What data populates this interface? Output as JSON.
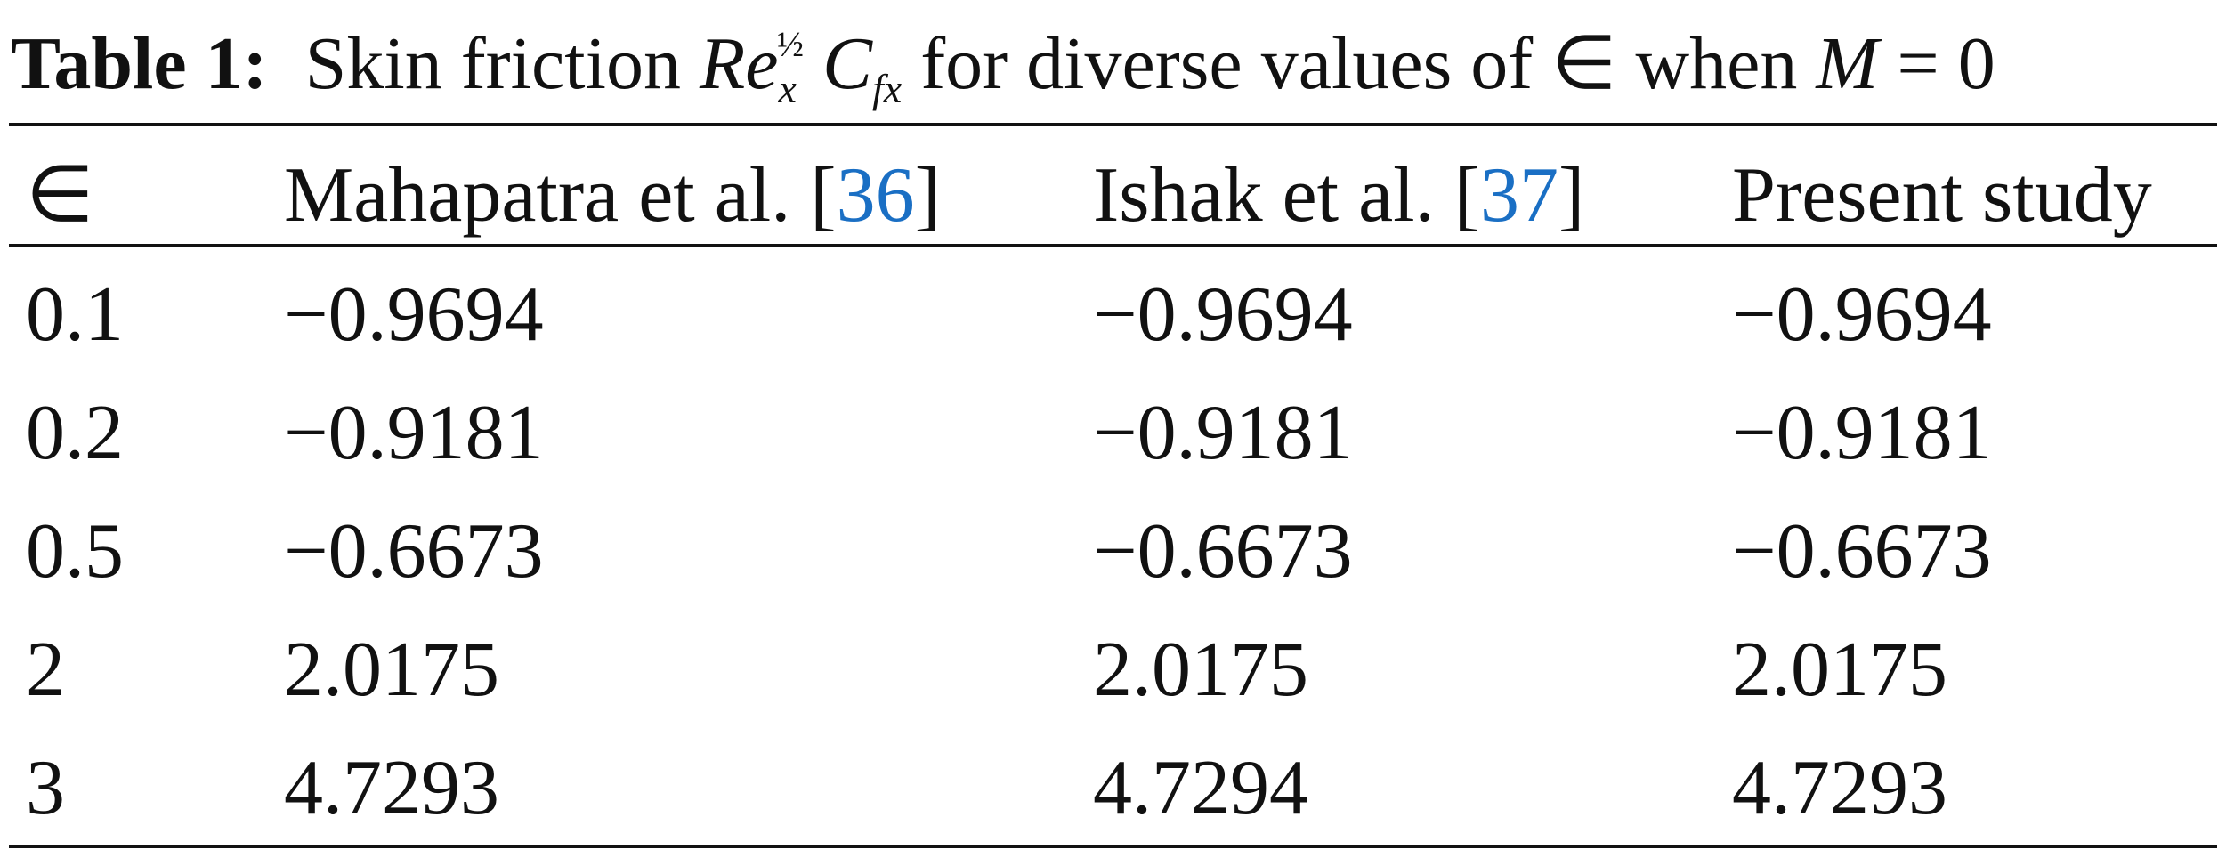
{
  "caption": {
    "label": "Table 1:",
    "text": "Skin friction",
    "re": "Re",
    "re_sub": "x",
    "re_sup": "½",
    "cf": "C",
    "cf_sub": "fx",
    "text_after": "for diverse values of ∈ when",
    "m_var": "M",
    "m_eq": "= 0"
  },
  "table": {
    "header": [
      {
        "text": "∈"
      },
      {
        "text": "Mahapatra et al. [",
        "ref": "36",
        "close": "]"
      },
      {
        "text": "Ishak et al. [",
        "ref": "37",
        "close": "]"
      },
      {
        "text": "Present study"
      }
    ],
    "rows": [
      [
        "0.1",
        "−0.9694",
        "−0.9694",
        "−0.9694"
      ],
      [
        "0.2",
        "−0.9181",
        "−0.9181",
        "−0.9181"
      ],
      [
        "0.5",
        "−0.6673",
        "−0.6673",
        "−0.6673"
      ],
      [
        "2",
        "2.0175",
        "2.0175",
        "2.0175"
      ],
      [
        "3",
        "4.7293",
        "4.7294",
        "4.7293"
      ]
    ]
  }
}
